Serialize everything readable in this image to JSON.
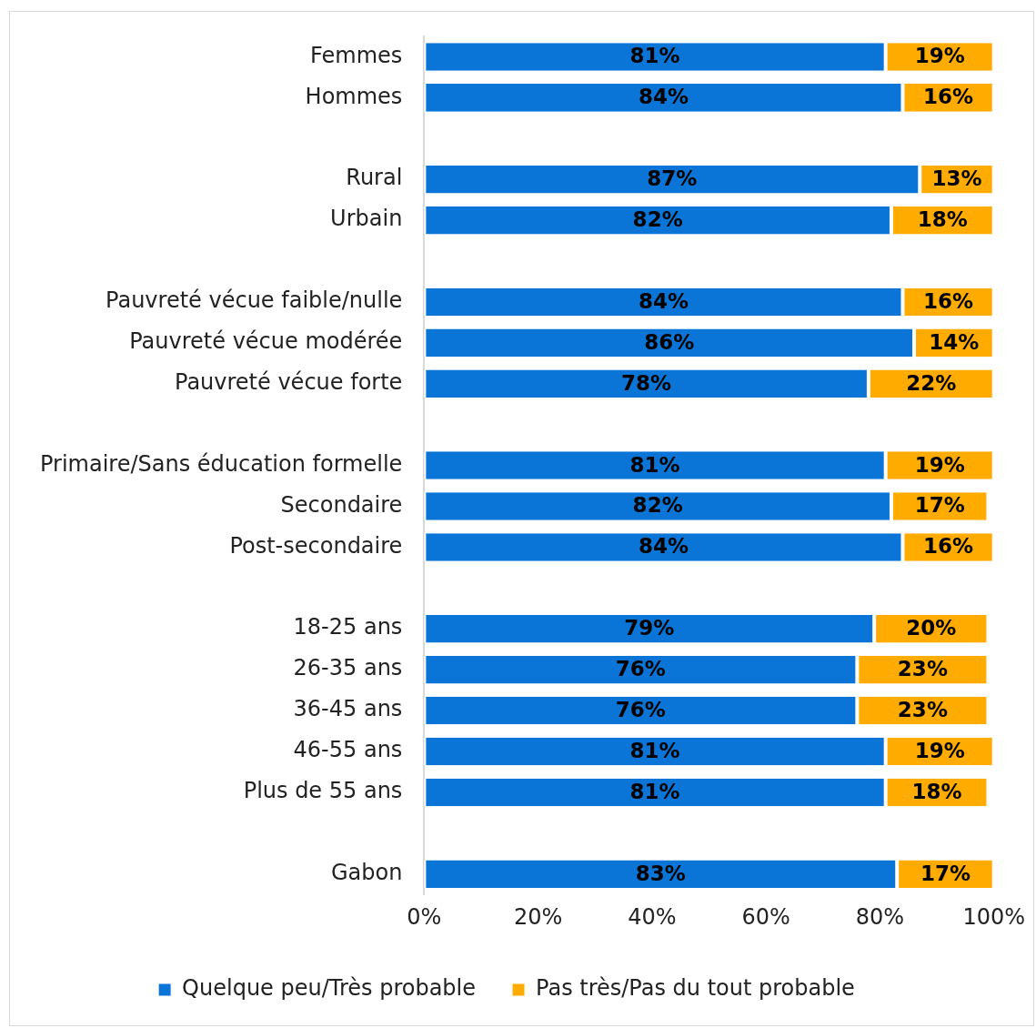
{
  "chart_data": {
    "type": "bar",
    "orientation": "horizontal",
    "stacked": true,
    "legend": "bottom",
    "grid": false,
    "categories": [
      "Femmes",
      "Hommes",
      null,
      "Rural",
      "Urbain",
      null,
      "Pauvreté vécue faible/nulle",
      "Pauvreté vécue modérée",
      "Pauvreté vécue forte",
      null,
      "Primaire/Sans éducation formelle",
      "Secondaire",
      "Post-secondaire",
      null,
      "18-25 ans",
      "26-35 ans",
      "36-45 ans",
      "46-55 ans",
      "Plus de 55 ans",
      null,
      "Gabon"
    ],
    "series": [
      {
        "name": "Quelque peu/Très probable",
        "color": "#0a75d6",
        "values": [
          81,
          84,
          null,
          87,
          82,
          null,
          84,
          86,
          78,
          null,
          81,
          82,
          84,
          null,
          79,
          76,
          76,
          81,
          81,
          null,
          83
        ],
        "value_labels": [
          "81%",
          "84%",
          null,
          "87%",
          "82%",
          null,
          "84%",
          "86%",
          "78%",
          null,
          "81%",
          "82%",
          "84%",
          null,
          "79%",
          "76%",
          "76%",
          "81%",
          "81%",
          null,
          "83%"
        ]
      },
      {
        "name": "Pas très/Pas du tout probable",
        "color": "#ffab00",
        "values": [
          19,
          16,
          null,
          13,
          18,
          null,
          16,
          14,
          22,
          null,
          19,
          17,
          16,
          null,
          20,
          23,
          23,
          19,
          18,
          null,
          17
        ],
        "value_labels": [
          "19%",
          "16%",
          null,
          "13%",
          "18%",
          null,
          "16%",
          "14%",
          "22%",
          null,
          "19%",
          "17%",
          "16%",
          null,
          "20%",
          "23%",
          "23%",
          "19%",
          "18%",
          null,
          "17%"
        ]
      }
    ],
    "xlim": [
      0,
      100
    ],
    "xticks": [
      {
        "value": 0,
        "label": "0%"
      },
      {
        "value": 20,
        "label": "20%"
      },
      {
        "value": 40,
        "label": "40%"
      },
      {
        "value": 60,
        "label": "60%"
      },
      {
        "value": 80,
        "label": "80%"
      },
      {
        "value": 100,
        "label": "100%"
      }
    ]
  }
}
